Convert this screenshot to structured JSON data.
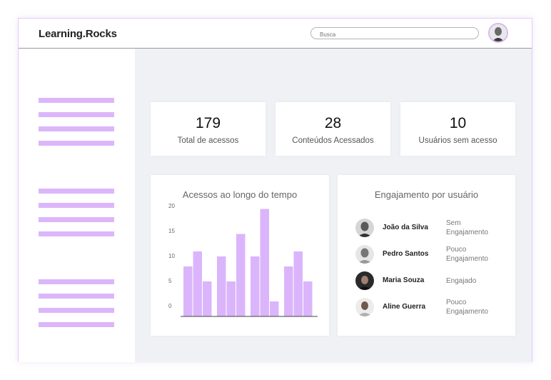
{
  "header": {
    "logo": "Learning.Rocks",
    "search_placeholder": "Busca",
    "avatar_icon": "user-avatar-icon"
  },
  "sidebar": {
    "groups": [
      {
        "items": 4
      },
      {
        "items": 4
      },
      {
        "items": 4
      }
    ]
  },
  "stats": [
    {
      "value": "179",
      "label": "Total de acessos"
    },
    {
      "value": "28",
      "label": "Conteúdos Acessados"
    },
    {
      "value": "10",
      "label": "Usuários sem acesso"
    }
  ],
  "access_chart": {
    "title": "Acessos ao longo do tempo"
  },
  "chart_data": {
    "type": "bar",
    "title": "Acessos ao longo do tempo",
    "yticks": [
      "20",
      "15",
      "10",
      "5",
      "0"
    ],
    "ylim": [
      0,
      22
    ],
    "groups": [
      [
        10,
        13,
        7
      ],
      [
        12,
        7,
        16.5
      ],
      [
        12,
        21.5,
        3
      ],
      [
        10,
        13,
        7
      ]
    ],
    "bar_color": "#dbb5fb"
  },
  "engagement": {
    "title": "Engajamento por usuário",
    "users": [
      {
        "name": "João da Silva",
        "status": "Sem Engajamento"
      },
      {
        "name": "Pedro Santos",
        "status": "Pouco Engajamento"
      },
      {
        "name": "Maria Souza",
        "status": "Engajado"
      },
      {
        "name": "Aline Guerra",
        "status": "Pouco Engajamento"
      }
    ]
  }
}
